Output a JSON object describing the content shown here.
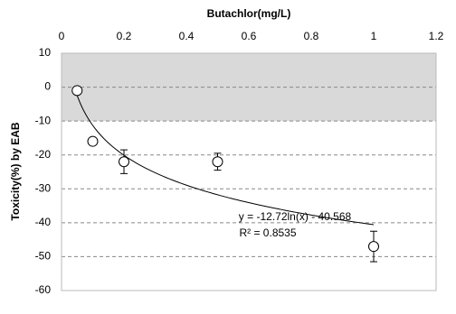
{
  "chart_data": {
    "type": "scatter",
    "x_label": "Butachlor(mg/L)",
    "y_label": "Toxicity(%) by EAB",
    "x": [
      0.05,
      0.1,
      0.2,
      0.5,
      1
    ],
    "y": [
      -1,
      -16,
      -22,
      -22,
      -47
    ],
    "errors": [
      null,
      null,
      3.5,
      2.5,
      4.5
    ],
    "color": "#000000",
    "xlim": [
      0,
      1.2
    ],
    "xticks": [
      0,
      0.2,
      0.4,
      0.6,
      0.8,
      1,
      1.2
    ],
    "ylim": [
      -60,
      10
    ],
    "yticks": [
      10,
      0,
      -10,
      -20,
      -30,
      -40,
      -50,
      -60
    ],
    "grid": true,
    "shaded_range": [
      -10,
      10
    ],
    "shade_color": "#d9d9d9",
    "trendline": {
      "equation": "y = -12.72ln(x) - 40.568",
      "r2_label": "R² = 0.8535",
      "coef": -12.72,
      "intercept": -40.568
    }
  }
}
